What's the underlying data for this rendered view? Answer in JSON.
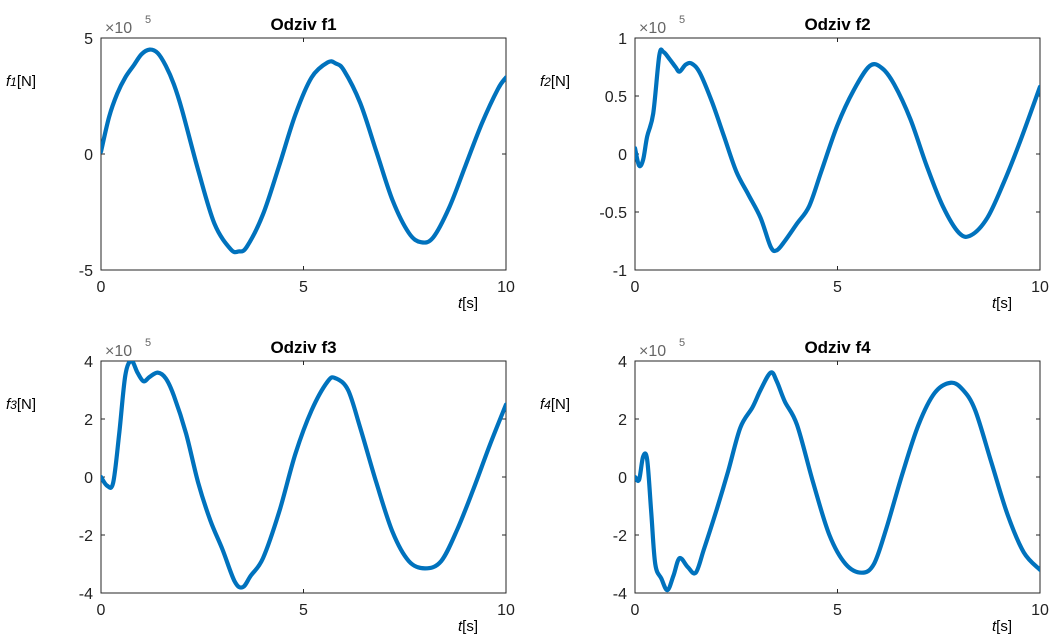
{
  "chart_data": [
    {
      "type": "line",
      "title": "Odziv f1",
      "ylabel_italic": "f",
      "ylabel_sub": "1",
      "ylabel_unit": "[N]",
      "xlabel_italic": "t",
      "xlabel_unit": "[s]",
      "exponent_base": "×10",
      "exponent_power": "5",
      "xlim": [
        0,
        10
      ],
      "ylim": [
        -5,
        5
      ],
      "xticks": [
        0,
        5,
        10
      ],
      "yticks": [
        -5,
        0,
        5
      ],
      "xtick_labels": [
        "0",
        "5",
        "10"
      ],
      "ytick_labels": [
        "-5",
        "0",
        "5"
      ],
      "grid": false,
      "color": "#0072BD",
      "x": [
        0,
        0.2,
        0.4,
        0.6,
        0.8,
        1.0,
        1.2,
        1.4,
        1.6,
        1.8,
        2.0,
        2.4,
        2.8,
        3.2,
        3.4,
        3.6,
        4.0,
        4.4,
        4.8,
        5.2,
        5.6,
        5.8,
        6.0,
        6.4,
        6.8,
        7.2,
        7.6,
        7.9,
        8.2,
        8.6,
        9.0,
        9.4,
        9.8,
        10.0
      ],
      "y": [
        0.1,
        1.6,
        2.6,
        3.3,
        3.8,
        4.3,
        4.5,
        4.35,
        3.8,
        3.0,
        1.9,
        -0.7,
        -3.0,
        -4.1,
        -4.2,
        -4.0,
        -2.6,
        -0.5,
        1.7,
        3.3,
        3.95,
        3.9,
        3.6,
        2.2,
        0.1,
        -2.0,
        -3.4,
        -3.8,
        -3.6,
        -2.3,
        -0.5,
        1.3,
        2.8,
        3.3
      ]
    },
    {
      "type": "line",
      "title": "Odziv f2",
      "ylabel_italic": "f",
      "ylabel_sub": "2",
      "ylabel_unit": "[N]",
      "xlabel_italic": "t",
      "xlabel_unit": "[s]",
      "exponent_base": "×10",
      "exponent_power": "5",
      "xlim": [
        0,
        10
      ],
      "ylim": [
        -1,
        1
      ],
      "xticks": [
        0,
        5,
        10
      ],
      "yticks": [
        -1,
        -0.5,
        0,
        0.5,
        1
      ],
      "xtick_labels": [
        "0",
        "5",
        "10"
      ],
      "ytick_labels": [
        "-1",
        "-0.5",
        "0",
        "0.5",
        "1"
      ],
      "grid": false,
      "color": "#0072BD",
      "x": [
        0,
        0.1,
        0.2,
        0.3,
        0.45,
        0.6,
        0.7,
        0.85,
        1.0,
        1.1,
        1.25,
        1.4,
        1.6,
        1.9,
        2.2,
        2.5,
        2.8,
        3.1,
        3.35,
        3.5,
        3.7,
        4.0,
        4.3,
        4.6,
        5.0,
        5.4,
        5.8,
        6.1,
        6.4,
        6.8,
        7.2,
        7.6,
        8.0,
        8.3,
        8.7,
        9.1,
        9.5,
        10.0
      ],
      "y": [
        0.05,
        -0.1,
        -0.05,
        0.15,
        0.35,
        0.85,
        0.88,
        0.82,
        0.75,
        0.71,
        0.77,
        0.78,
        0.7,
        0.45,
        0.15,
        -0.15,
        -0.35,
        -0.55,
        -0.8,
        -0.83,
        -0.75,
        -0.6,
        -0.45,
        -0.15,
        0.25,
        0.55,
        0.76,
        0.74,
        0.6,
        0.3,
        -0.1,
        -0.45,
        -0.68,
        -0.7,
        -0.55,
        -0.25,
        0.1,
        0.58
      ]
    },
    {
      "type": "line",
      "title": "Odziv f3",
      "ylabel_italic": "f",
      "ylabel_sub": "3",
      "ylabel_unit": "[N]",
      "xlabel_italic": "t",
      "xlabel_unit": "[s]",
      "exponent_base": "×10",
      "exponent_power": "5",
      "xlim": [
        0,
        10
      ],
      "ylim": [
        -4,
        4
      ],
      "xticks": [
        0,
        5,
        10
      ],
      "yticks": [
        -4,
        -2,
        0,
        2,
        4
      ],
      "xtick_labels": [
        "0",
        "5",
        "10"
      ],
      "ytick_labels": [
        "-4",
        "-2",
        "0",
        "2",
        "4"
      ],
      "grid": false,
      "color": "#0072BD",
      "x": [
        0,
        0.15,
        0.3,
        0.45,
        0.6,
        0.75,
        0.9,
        1.05,
        1.2,
        1.4,
        1.6,
        1.8,
        2.1,
        2.4,
        2.7,
        3.0,
        3.3,
        3.5,
        3.7,
        4.0,
        4.4,
        4.8,
        5.2,
        5.6,
        5.8,
        6.1,
        6.4,
        6.8,
        7.2,
        7.6,
        8.0,
        8.4,
        8.8,
        9.2,
        9.6,
        10.0
      ],
      "y": [
        0,
        -0.3,
        -0.2,
        1.5,
        3.5,
        4.0,
        3.6,
        3.3,
        3.45,
        3.6,
        3.4,
        2.8,
        1.5,
        -0.2,
        -1.5,
        -2.5,
        -3.6,
        -3.8,
        -3.4,
        -2.8,
        -1.2,
        0.8,
        2.3,
        3.3,
        3.4,
        3.0,
        1.7,
        -0.2,
        -1.9,
        -2.9,
        -3.15,
        -2.9,
        -1.8,
        -0.4,
        1.1,
        2.5
      ]
    },
    {
      "type": "line",
      "title": "Odziv f4",
      "ylabel_italic": "f",
      "ylabel_sub": "4",
      "ylabel_unit": "[N]",
      "xlabel_italic": "t",
      "xlabel_unit": "[s]",
      "exponent_base": "×10",
      "exponent_power": "5",
      "xlim": [
        0,
        10
      ],
      "ylim": [
        -4,
        4
      ],
      "xticks": [
        0,
        5,
        10
      ],
      "yticks": [
        -4,
        -2,
        0,
        2,
        4
      ],
      "xtick_labels": [
        "0",
        "5",
        "10"
      ],
      "ytick_labels": [
        "-4",
        "-2",
        "0",
        "2",
        "4"
      ],
      "grid": false,
      "color": "#0072BD",
      "x": [
        0,
        0.1,
        0.2,
        0.3,
        0.4,
        0.5,
        0.65,
        0.8,
        0.95,
        1.1,
        1.3,
        1.5,
        1.7,
        2.0,
        2.3,
        2.6,
        2.9,
        3.1,
        3.35,
        3.5,
        3.7,
        4.0,
        4.4,
        4.8,
        5.2,
        5.6,
        5.9,
        6.2,
        6.6,
        7.0,
        7.4,
        7.8,
        8.1,
        8.4,
        8.8,
        9.2,
        9.6,
        10.0
      ],
      "y": [
        0,
        -0.1,
        0.7,
        0.6,
        -1.2,
        -3.0,
        -3.5,
        -3.9,
        -3.4,
        -2.8,
        -3.1,
        -3.3,
        -2.5,
        -1.2,
        0.2,
        1.7,
        2.4,
        3.0,
        3.6,
        3.3,
        2.6,
        1.8,
        -0.2,
        -2.0,
        -3.0,
        -3.3,
        -3.0,
        -1.8,
        0.1,
        1.8,
        2.9,
        3.25,
        3.0,
        2.3,
        0.5,
        -1.3,
        -2.6,
        -3.2
      ]
    }
  ]
}
